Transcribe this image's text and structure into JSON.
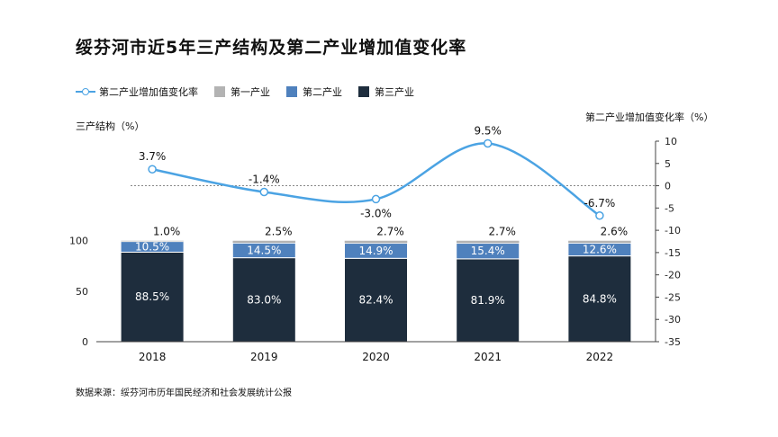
{
  "chart_data": {
    "type": "bar",
    "title": "绥芬河市近5年三产结构及第二产业增加值变化率",
    "categories": [
      "2018",
      "2019",
      "2020",
      "2021",
      "2022"
    ],
    "series": [
      {
        "name": "第三产业",
        "type": "bar",
        "axis": "left",
        "color": "#1e2d3d",
        "values": [
          88.5,
          83.0,
          82.4,
          81.9,
          84.8
        ],
        "labels": [
          "88.5%",
          "83.0%",
          "82.4%",
          "81.9%",
          "84.8%"
        ]
      },
      {
        "name": "第二产业",
        "type": "bar",
        "axis": "left",
        "color": "#4f81bd",
        "values": [
          10.5,
          14.5,
          14.9,
          15.4,
          12.6
        ],
        "labels": [
          "10.5%",
          "14.5%",
          "14.9%",
          "15.4%",
          "12.6%"
        ]
      },
      {
        "name": "第一产业",
        "type": "bar",
        "axis": "left",
        "color": "#b3b3b3",
        "values": [
          1.0,
          2.5,
          2.7,
          2.7,
          2.6
        ],
        "labels": [
          "1.0%",
          "2.5%",
          "2.7%",
          "2.7%",
          "2.6%"
        ]
      },
      {
        "name": "第二产业增加值变化率",
        "type": "line",
        "axis": "right",
        "color": "#4ba3e3",
        "values": [
          3.7,
          -1.4,
          -3.0,
          9.5,
          -6.7
        ],
        "labels": [
          "3.7%",
          "-1.4%",
          "-3.0%",
          "9.5%",
          "-6.7%"
        ]
      }
    ],
    "legend_order": [
      "第二产业增加值变化率",
      "第一产业",
      "第二产业",
      "第三产业"
    ],
    "ylabel": "三产结构（%）",
    "y2label": "第二产业增加值变化率（%）",
    "ylim": [
      0,
      100
    ],
    "yticks": [
      0,
      50,
      100
    ],
    "y2lim": [
      -35,
      10
    ],
    "y2ticks": [
      10,
      5,
      0,
      -5,
      -10,
      -15,
      -20,
      -25,
      -30,
      -35
    ],
    "legend_position": "top-left"
  },
  "source": "数据来源：绥芬河市历年国民经济和社会发展统计公报"
}
